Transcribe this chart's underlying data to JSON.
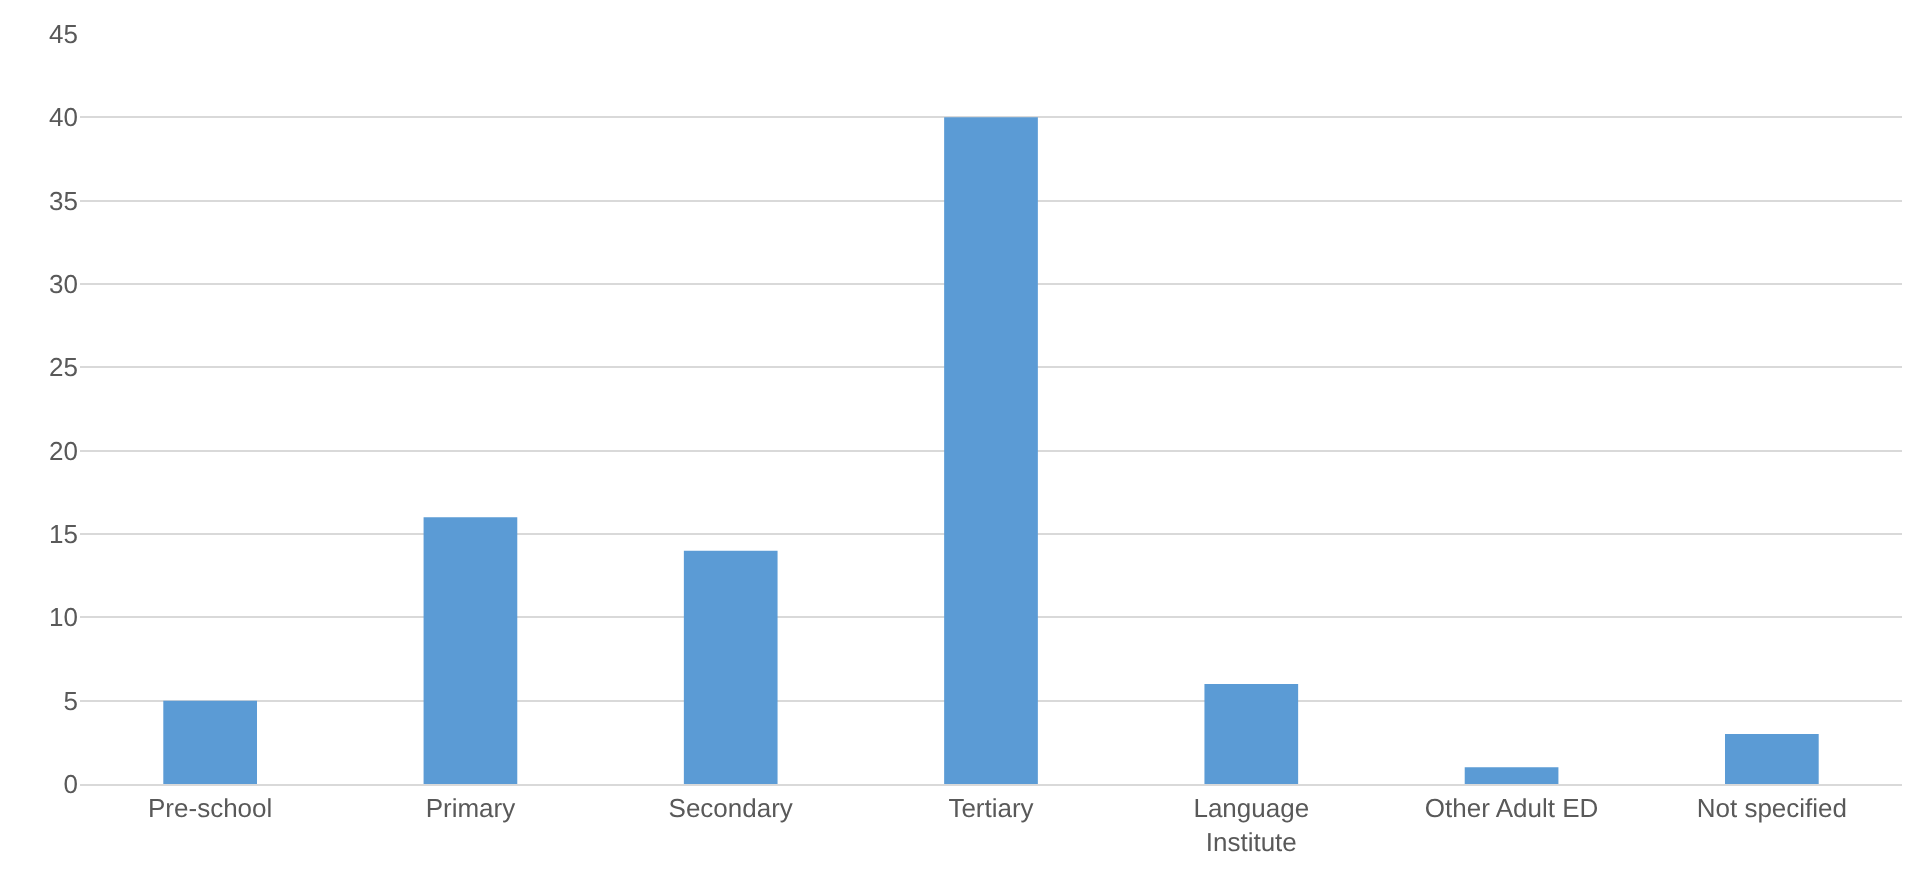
{
  "chart_data": {
    "type": "bar",
    "categories": [
      "Pre-school",
      "Primary",
      "Secondary",
      "Tertiary",
      "Language\nInstitute",
      "Other Adult ED",
      "Not specified"
    ],
    "values": [
      5,
      16,
      14,
      40,
      6,
      1,
      3
    ],
    "color": "#5b9bd5",
    "ylim": [
      0,
      45
    ],
    "yticks": [
      0,
      5,
      10,
      15,
      20,
      25,
      30,
      35,
      40,
      45
    ],
    "grid": "y"
  }
}
